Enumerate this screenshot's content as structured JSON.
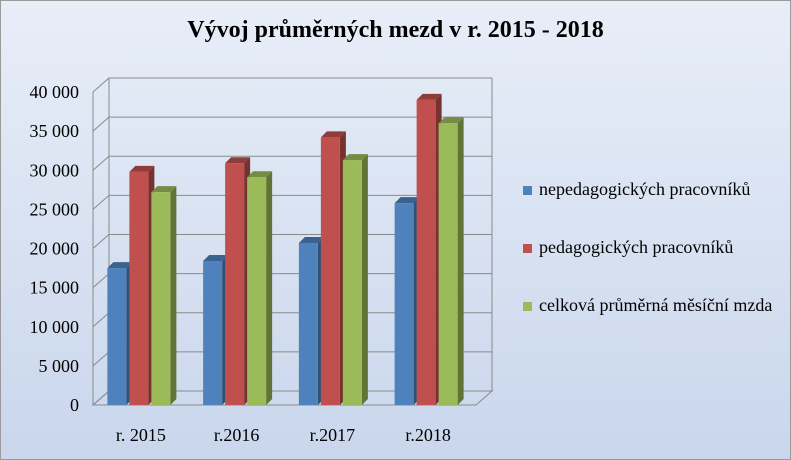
{
  "chart_data": {
    "type": "bar",
    "title": "Vývoj průměrných mezd v r. 2015 - 2018",
    "categories": [
      "r. 2015",
      "r.2016",
      "r.2017",
      "r.2018"
    ],
    "series": [
      {
        "name": "nepedagogických pracovníků",
        "color": "#4f81bd",
        "values": [
          17500,
          18400,
          20700,
          25800
        ]
      },
      {
        "name": "pedagogických pracovníků",
        "color": "#c0504d",
        "values": [
          29800,
          30900,
          34200,
          39000
        ]
      },
      {
        "name": "celková průměrná měsíční mzda",
        "color": "#9bbb59",
        "values": [
          27200,
          29100,
          31300,
          36000
        ]
      }
    ],
    "yticks": [
      "0",
      "5 000",
      "10 000",
      "15 000",
      "20 000",
      "25 000",
      "30 000",
      "35 000",
      "40 000"
    ],
    "ylim": [
      0,
      40000
    ],
    "grid": true,
    "legend_position": "right"
  }
}
